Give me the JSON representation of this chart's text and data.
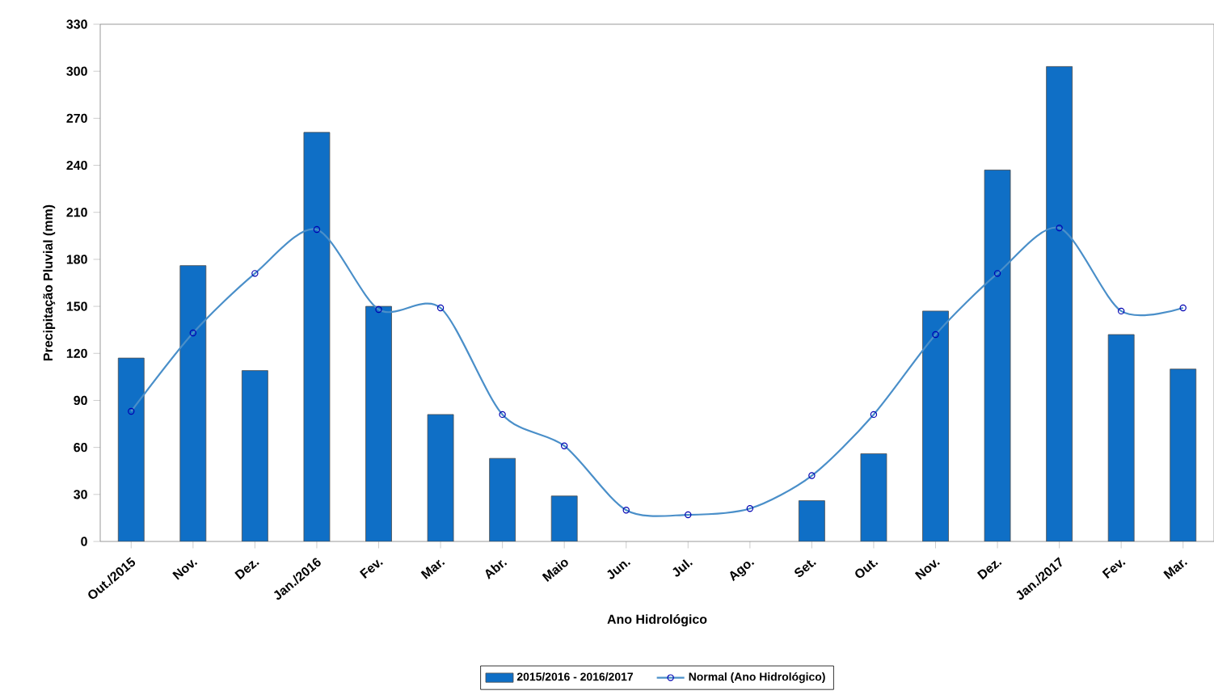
{
  "chart_data": {
    "type": "bar",
    "xlabel": "Ano Hidrológico",
    "ylabel": "Precipitação Pluvial (mm)",
    "categories": [
      "Out./2015",
      "Nov.",
      "Dez.",
      "Jan./2016",
      "Fev.",
      "Mar.",
      "Abr.",
      "Maio",
      "Jun.",
      "Jul.",
      "Ago.",
      "Set.",
      "Out.",
      "Nov.",
      "Dez.",
      "Jan./2017",
      "Fev.",
      "Mar."
    ],
    "series": [
      {
        "name": "2015/2016 - 2016/2017",
        "color": "#0f6fc6",
        "values": [
          117,
          176,
          109,
          261,
          150,
          81,
          53,
          29,
          null,
          null,
          null,
          26,
          56,
          147,
          237,
          303,
          132,
          110
        ]
      },
      {
        "name": "Normal (Ano Hidrológico)",
        "type": "line",
        "color": "#4a8fc9",
        "marker": "circle",
        "values": [
          83,
          133,
          171,
          199,
          148,
          149,
          81,
          61,
          20,
          17,
          21,
          42,
          81,
          132,
          171,
          200,
          147,
          149
        ]
      }
    ],
    "ylim": [
      0,
      330
    ],
    "yticks": [
      0,
      30,
      60,
      90,
      120,
      150,
      180,
      210,
      240,
      270,
      300,
      330
    ],
    "grid": false,
    "legend": "bottom"
  }
}
